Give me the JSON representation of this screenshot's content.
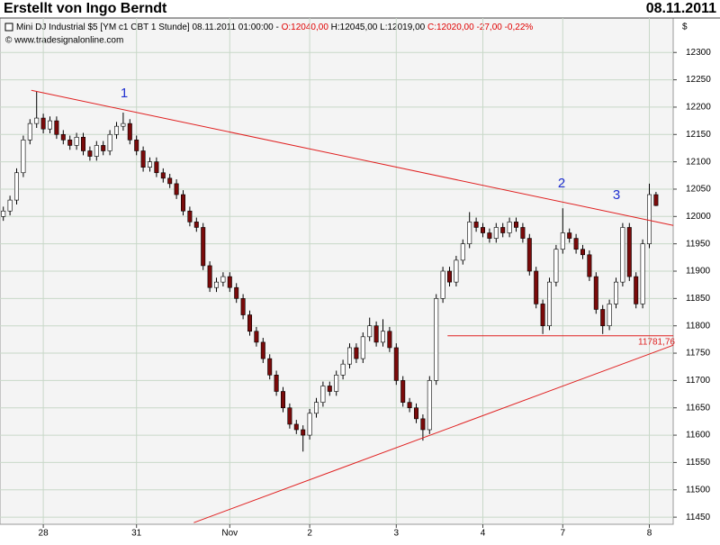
{
  "chart_data": {
    "type": "candlestick",
    "title": "Erstellt von Ingo Berndt",
    "date": "08.11.2011",
    "info": [
      "Mini DJ Industrial $5 [YM c1 CBT  1 Stunde] 08.11.2011 01:00:00 - ",
      "O:12040,00",
      " H:12045,00 L:12019,00 ",
      "C:12020,00 -27,00 -0,22%"
    ],
    "source": "© www.tradesignalonline.com",
    "y_axis_label": "$",
    "up_color": "#ffffff",
    "down_color": "#7a0a0a",
    "line_color": "#e02020",
    "grid": true,
    "categories": [
      null,
      null,
      null,
      null,
      null,
      null,
      "28",
      null,
      null,
      null,
      null,
      null,
      null,
      null,
      null,
      null,
      null,
      null,
      null,
      null,
      "31",
      null,
      null,
      null,
      null,
      null,
      null,
      null,
      null,
      null,
      null,
      null,
      null,
      null,
      "Nov",
      null,
      null,
      null,
      null,
      null,
      null,
      null,
      null,
      null,
      null,
      null,
      "2",
      null,
      null,
      null,
      null,
      null,
      null,
      null,
      null,
      null,
      null,
      null,
      null,
      "3",
      null,
      null,
      null,
      null,
      null,
      null,
      null,
      null,
      null,
      null,
      null,
      null,
      "4",
      null,
      null,
      null,
      null,
      null,
      null,
      null,
      null,
      null,
      null,
      null,
      "7",
      null,
      null,
      null,
      null,
      null,
      null,
      null,
      null,
      null,
      null,
      null,
      null,
      "8",
      null
    ],
    "candles": [
      [
        12000,
        12018,
        11992,
        12010
      ],
      [
        12010,
        12038,
        12002,
        12030
      ],
      [
        12030,
        12088,
        12022,
        12080
      ],
      [
        12080,
        12148,
        12072,
        12140
      ],
      [
        12140,
        12178,
        12132,
        12170
      ],
      [
        12170,
        12228,
        12162,
        12180
      ],
      [
        12180,
        12188,
        12152,
        12160
      ],
      [
        12160,
        12183,
        12152,
        12175
      ],
      [
        12175,
        12183,
        12142,
        12150
      ],
      [
        12150,
        12158,
        12132,
        12140
      ],
      [
        12140,
        12148,
        12122,
        12130
      ],
      [
        12130,
        12153,
        12122,
        12145
      ],
      [
        12145,
        12153,
        12112,
        12120
      ],
      [
        12120,
        12128,
        12102,
        12110
      ],
      [
        12110,
        12138,
        12102,
        12130
      ],
      [
        12130,
        12138,
        12112,
        12120
      ],
      [
        12120,
        12158,
        12112,
        12150
      ],
      [
        12150,
        12173,
        12142,
        12165
      ],
      [
        12165,
        12190,
        12157,
        12170
      ],
      [
        12170,
        12178,
        12132,
        12140
      ],
      [
        12140,
        12148,
        12112,
        12120
      ],
      [
        12120,
        12128,
        12082,
        12090
      ],
      [
        12090,
        12108,
        12082,
        12100
      ],
      [
        12100,
        12108,
        12072,
        12080
      ],
      [
        12080,
        12088,
        12062,
        12070
      ],
      [
        12070,
        12078,
        12052,
        12060
      ],
      [
        12060,
        12068,
        12032,
        12040
      ],
      [
        12040,
        12048,
        12002,
        12010
      ],
      [
        12010,
        12018,
        11982,
        11990
      ],
      [
        11990,
        11998,
        11972,
        11980
      ],
      [
        11980,
        11988,
        11902,
        11910
      ],
      [
        11910,
        11918,
        11862,
        11870
      ],
      [
        11870,
        11888,
        11862,
        11880
      ],
      [
        11880,
        11898,
        11872,
        11890
      ],
      [
        11890,
        11898,
        11862,
        11870
      ],
      [
        11870,
        11878,
        11842,
        11850
      ],
      [
        11850,
        11858,
        11812,
        11820
      ],
      [
        11820,
        11828,
        11782,
        11790
      ],
      [
        11790,
        11798,
        11762,
        11770
      ],
      [
        11770,
        11778,
        11732,
        11740
      ],
      [
        11740,
        11748,
        11702,
        11710
      ],
      [
        11710,
        11718,
        11672,
        11680
      ],
      [
        11680,
        11688,
        11642,
        11650
      ],
      [
        11650,
        11658,
        11612,
        11620
      ],
      [
        11620,
        11628,
        11602,
        11610
      ],
      [
        11610,
        11618,
        11570,
        11600
      ],
      [
        11600,
        11648,
        11592,
        11640
      ],
      [
        11640,
        11668,
        11632,
        11660
      ],
      [
        11660,
        11698,
        11652,
        11690
      ],
      [
        11690,
        11698,
        11672,
        11680
      ],
      [
        11680,
        11718,
        11672,
        11710
      ],
      [
        11710,
        11738,
        11702,
        11730
      ],
      [
        11730,
        11768,
        11722,
        11760
      ],
      [
        11760,
        11768,
        11732,
        11740
      ],
      [
        11740,
        11788,
        11732,
        11780
      ],
      [
        11780,
        11815,
        11772,
        11800
      ],
      [
        11800,
        11808,
        11762,
        11770
      ],
      [
        11770,
        11812,
        11762,
        11790
      ],
      [
        11790,
        11798,
        11752,
        11760
      ],
      [
        11760,
        11768,
        11692,
        11700
      ],
      [
        11700,
        11708,
        11652,
        11660
      ],
      [
        11660,
        11668,
        11642,
        11650
      ],
      [
        11650,
        11658,
        11622,
        11630
      ],
      [
        11630,
        11638,
        11590,
        11610
      ],
      [
        11610,
        11708,
        11602,
        11700
      ],
      [
        11700,
        11858,
        11692,
        11850
      ],
      [
        11850,
        11908,
        11842,
        11900
      ],
      [
        11900,
        11908,
        11872,
        11880
      ],
      [
        11880,
        11928,
        11872,
        11920
      ],
      [
        11920,
        11958,
        11912,
        11950
      ],
      [
        11950,
        12008,
        11942,
        11990
      ],
      [
        11990,
        11998,
        11972,
        11980
      ],
      [
        11980,
        11988,
        11962,
        11970
      ],
      [
        11970,
        11978,
        11952,
        11960
      ],
      [
        11960,
        11988,
        11952,
        11980
      ],
      [
        11980,
        11988,
        11962,
        11970
      ],
      [
        11970,
        11998,
        11962,
        11990
      ],
      [
        11990,
        11998,
        11972,
        11980
      ],
      [
        11980,
        11988,
        11952,
        11960
      ],
      [
        11960,
        11968,
        11892,
        11900
      ],
      [
        11900,
        11908,
        11832,
        11840
      ],
      [
        11840,
        11848,
        11785,
        11800
      ],
      [
        11800,
        11888,
        11792,
        11880
      ],
      [
        11880,
        11948,
        11872,
        11940
      ],
      [
        11940,
        12015,
        11932,
        11970
      ],
      [
        11970,
        11978,
        11952,
        11960
      ],
      [
        11960,
        11968,
        11932,
        11940
      ],
      [
        11940,
        11948,
        11922,
        11930
      ],
      [
        11930,
        11938,
        11882,
        11890
      ],
      [
        11890,
        11898,
        11822,
        11830
      ],
      [
        11830,
        11838,
        11785,
        11800
      ],
      [
        11800,
        11848,
        11792,
        11840
      ],
      [
        11840,
        11888,
        11832,
        11880
      ],
      [
        11880,
        11988,
        11872,
        11980
      ],
      [
        11980,
        11988,
        11882,
        11890
      ],
      [
        11890,
        11898,
        11832,
        11840
      ],
      [
        11840,
        11958,
        11832,
        11950
      ],
      [
        11950,
        12060,
        11942,
        12040
      ],
      [
        12040,
        12045,
        12019,
        12020
      ]
    ],
    "trend_lines": [
      [
        [
          4.2,
          12230.8
        ],
        [
          100.6,
          11983.7
        ]
      ],
      [
        [
          28.6,
          11440
        ],
        [
          100.6,
          11764.6
        ]
      ]
    ],
    "support_line": {
      "value": 11781.76,
      "label": "11781,76",
      "from": 66.7,
      "to": 100.6
    },
    "wave_labels": [
      "1",
      "2",
      "3"
    ],
    "ylim": [
      11437,
      12363
    ],
    "yticks": [
      11450,
      11500,
      11550,
      11600,
      11650,
      11700,
      11750,
      11800,
      11850,
      11900,
      11950,
      12000,
      12050,
      12100,
      12150,
      12200,
      12250,
      12300
    ]
  }
}
